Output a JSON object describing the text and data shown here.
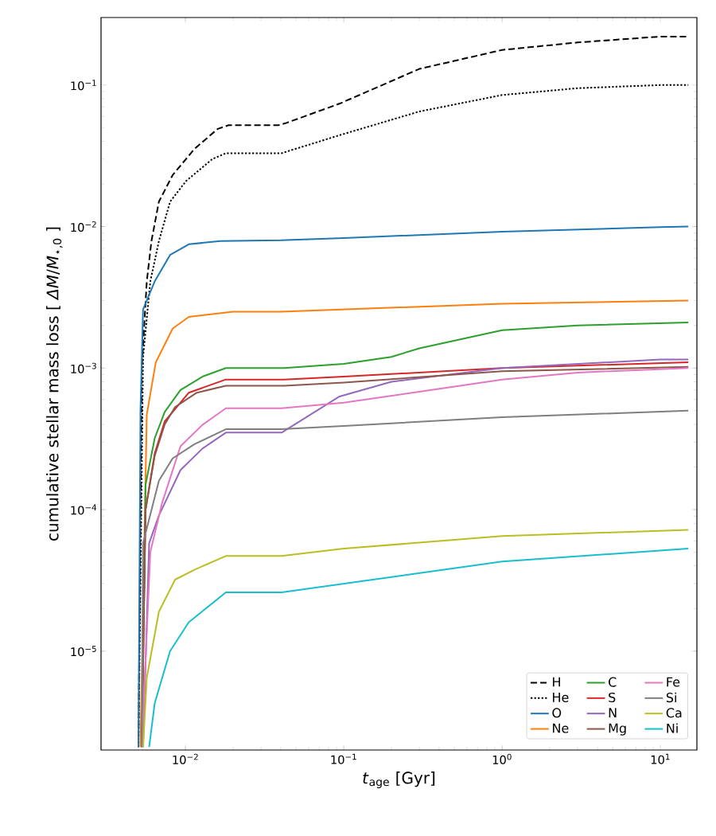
{
  "chart_data": {
    "type": "line",
    "xlabel": "*t*$_{age}$  [Gyr]",
    "ylabel": "cumulative stellar mass loss   [ *ΔM*/*M*$_{⋆,0}$ ]",
    "log": "xy",
    "xlim": [
      0.00293,
      17.0
    ],
    "ylim": [
      2e-06,
      0.3
    ],
    "xticks": [
      {
        "value": 0.01,
        "label": "10$^{−2}$"
      },
      {
        "value": 0.1,
        "label": "10$^{−1}$"
      },
      {
        "value": 1,
        "label": "10$^{0}$"
      },
      {
        "value": 10,
        "label": "10$^{1}$"
      }
    ],
    "yticks": [
      {
        "value": 1e-05,
        "label": "10$^{−5}$"
      },
      {
        "value": 0.0001,
        "label": "10$^{−4}$"
      },
      {
        "value": 0.001,
        "label": "10$^{−3}$"
      },
      {
        "value": 0.01,
        "label": "10$^{−2}$"
      },
      {
        "value": 0.1,
        "label": "10$^{−1}$"
      }
    ],
    "legend": "bottom right",
    "series": [
      {
        "name": "H",
        "color": "#000000",
        "line_style": "dashed",
        "x": [
          0.00505,
          0.0053,
          0.0057,
          0.0061,
          0.0068,
          0.0083,
          0.0114,
          0.016,
          0.0187,
          0.0387,
          0.0434,
          0.0944,
          0.3,
          1,
          3,
          10,
          15
        ],
        "values": [
          2.1e-06,
          0.001,
          0.0041,
          0.0079,
          0.015,
          0.0231,
          0.0354,
          0.049,
          0.052,
          0.052,
          0.054,
          0.074,
          0.13,
          0.177,
          0.2,
          0.22,
          0.22
        ]
      },
      {
        "name": "He",
        "color": "#000000",
        "line_style": "dotted",
        "x": [
          0.00505,
          0.0054,
          0.006,
          0.0068,
          0.008,
          0.0101,
          0.0148,
          0.018,
          0.0405,
          0.094,
          0.3,
          1,
          3,
          10,
          15
        ],
        "values": [
          2.1e-06,
          0.0012,
          0.0041,
          0.0079,
          0.015,
          0.021,
          0.03,
          0.033,
          0.033,
          0.0442,
          0.065,
          0.085,
          0.095,
          0.1,
          0.1
        ]
      },
      {
        "name": "O",
        "color": "#1f77b4",
        "line_style": "solid",
        "x": [
          0.00505,
          0.0052,
          0.0054,
          0.0064,
          0.008,
          0.0105,
          0.0166,
          0.04,
          0.1,
          1,
          10,
          15
        ],
        "values": [
          2.1e-06,
          0.0005,
          0.0026,
          0.0041,
          0.0063,
          0.0075,
          0.0079,
          0.008,
          0.0083,
          0.0092,
          0.0099,
          0.01
        ]
      },
      {
        "name": "Ne",
        "color": "#ff7f0e",
        "line_style": "solid",
        "x": [
          0.0052,
          0.0057,
          0.0065,
          0.0083,
          0.0105,
          0.02,
          0.04,
          1,
          15
        ],
        "values": [
          2.1e-06,
          0.00047,
          0.0011,
          0.0019,
          0.0023,
          0.0025,
          0.0025,
          0.00285,
          0.003
        ]
      },
      {
        "name": "C",
        "color": "#2ca02c",
        "line_style": "solid",
        "x": [
          0.0053,
          0.0056,
          0.0064,
          0.0074,
          0.0093,
          0.0128,
          0.018,
          0.042,
          0.1,
          0.2,
          0.3,
          1,
          3,
          15
        ],
        "values": [
          2.1e-06,
          0.00015,
          0.00032,
          0.00049,
          0.0007,
          0.00087,
          0.001,
          0.001,
          0.00107,
          0.0012,
          0.00138,
          0.00185,
          0.002,
          0.0021
        ]
      },
      {
        "name": "S",
        "color": "#d62728",
        "line_style": "solid",
        "x": [
          0.0053,
          0.0056,
          0.0064,
          0.0074,
          0.0105,
          0.018,
          0.042,
          0.1,
          1,
          15
        ],
        "values": [
          2.1e-06,
          0.0001,
          0.00025,
          0.00042,
          0.00067,
          0.00083,
          0.00083,
          0.00087,
          0.001,
          0.0011
        ]
      },
      {
        "name": "N",
        "color": "#9467bd",
        "line_style": "solid",
        "x": [
          0.0054,
          0.0059,
          0.0068,
          0.0093,
          0.0128,
          0.018,
          0.0405,
          0.094,
          0.2,
          1,
          10,
          15
        ],
        "values": [
          2.1e-06,
          5.8e-05,
          9.1e-05,
          0.00019,
          0.00027,
          0.00035,
          0.00035,
          0.00063,
          0.0008,
          0.001,
          0.00115,
          0.00115
        ]
      },
      {
        "name": "Mg",
        "color": "#8c564b",
        "line_style": "solid",
        "x": [
          0.0053,
          0.0056,
          0.0064,
          0.0074,
          0.0086,
          0.0118,
          0.018,
          0.042,
          0.1,
          1,
          15
        ],
        "values": [
          2.1e-06,
          0.0001,
          0.00024,
          0.0004,
          0.00053,
          0.00067,
          0.00075,
          0.00075,
          0.00079,
          0.00095,
          0.00102
        ]
      },
      {
        "name": "Fe",
        "color": "#e377c2",
        "line_style": "solid",
        "x": [
          0.0053,
          0.006,
          0.0071,
          0.0093,
          0.0128,
          0.018,
          0.0405,
          0.1,
          0.3,
          1,
          3,
          15
        ],
        "values": [
          2.1e-06,
          5e-05,
          0.00011,
          0.00028,
          0.000397,
          0.00052,
          0.00052,
          0.00057,
          0.00068,
          0.00083,
          0.00093,
          0.001
        ]
      },
      {
        "name": "Si",
        "color": "#7f7f7f",
        "line_style": "solid",
        "x": [
          0.0053,
          0.0054,
          0.0068,
          0.0083,
          0.0114,
          0.018,
          0.0405,
          0.1,
          1,
          15
        ],
        "values": [
          2.1e-06,
          5.8e-05,
          0.00016,
          0.00023,
          0.00029,
          0.00037,
          0.00037,
          0.00039,
          0.00045,
          0.0005
        ]
      },
      {
        "name": "Ca",
        "color": "#bcbd22",
        "line_style": "solid",
        "x": [
          0.0054,
          0.0057,
          0.0068,
          0.0086,
          0.0114,
          0.018,
          0.0405,
          0.1,
          1,
          15
        ],
        "values": [
          2.1e-06,
          6.5e-06,
          1.9e-05,
          3.2e-05,
          3.76e-05,
          4.7e-05,
          4.7e-05,
          5.3e-05,
          6.5e-05,
          7.2e-05
        ]
      },
      {
        "name": "Ni",
        "color": "#17becf",
        "line_style": "solid",
        "x": [
          0.0059,
          0.0064,
          0.008,
          0.0105,
          0.018,
          0.0405,
          1,
          15
        ],
        "values": [
          2.1e-06,
          4.3e-06,
          1e-05,
          1.6e-05,
          2.6e-05,
          2.6e-05,
          4.3e-05,
          5.3e-05
        ]
      }
    ]
  }
}
